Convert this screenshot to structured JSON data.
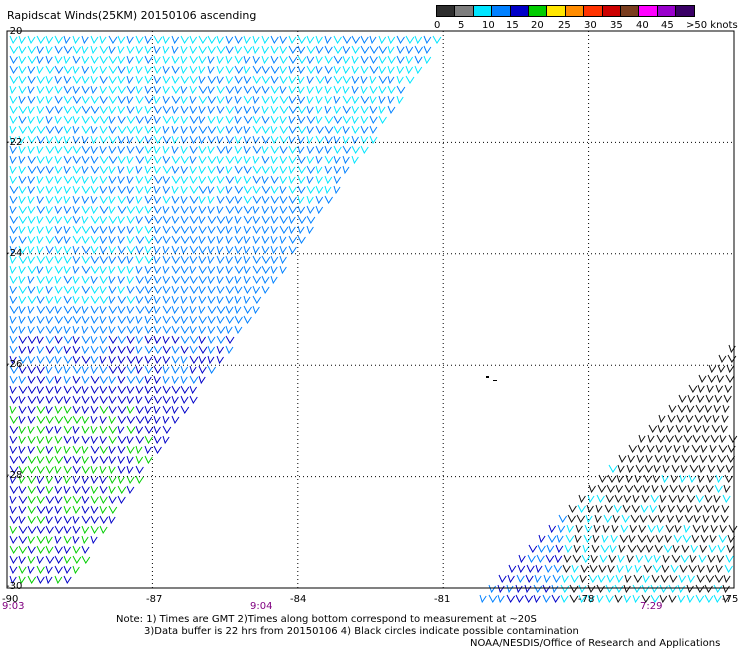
{
  "header": {
    "title": "Rapidscat Winds(25KM) 20150106 ascending"
  },
  "legend": {
    "labels": [
      "0",
      "5",
      "10",
      "15",
      "20",
      "25",
      "30",
      "35",
      "40",
      "45",
      ">50 knots"
    ],
    "colors": [
      "#2e2e2e",
      "#7d7d7d",
      "#00e5ff",
      "#0080ff",
      "#0000c8",
      "#00cc00",
      "#ffe600",
      "#ff8c00",
      "#ff3300",
      "#cc0000",
      "#7a3d1e",
      "#ff00ff",
      "#9900cc",
      "#3a0066"
    ]
  },
  "map": {
    "lon_range": [
      -90,
      -75
    ],
    "lat_range": [
      -30,
      -20
    ],
    "x_tick_labels": [
      "-90",
      "-87",
      "-84",
      "-81",
      "-78",
      "-75"
    ],
    "y_tick_labels": [
      "-20",
      "-22",
      "-24",
      "-26",
      "-28",
      "-30"
    ],
    "pass_times": [
      "9:03",
      "9:04",
      "7:29"
    ]
  },
  "footer": {
    "note_line1": "Note: 1) Times are GMT 2)Times along bottom correspond to measurement at ~20S",
    "note_line2": "3)Data buffer is 22 hrs from 20150106 4) Black circles indicate possible contamination",
    "credit": "NOAA/NESDIS/Office of Research and Applications"
  }
}
